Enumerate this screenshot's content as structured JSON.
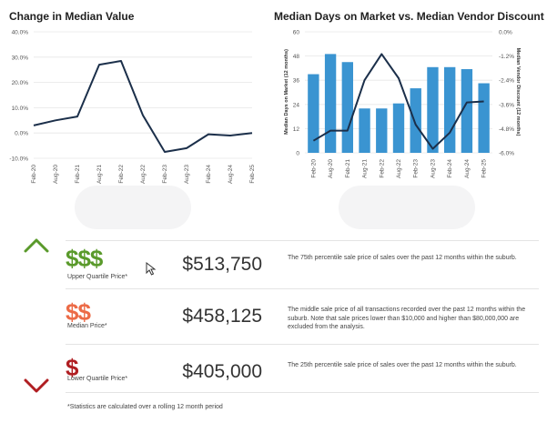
{
  "colors": {
    "line": "#1b2f4a",
    "bar": "#3a94d1",
    "upper": "#5a9a2b",
    "median": "#ec6b47",
    "lower": "#b01e22",
    "grid": "#e6e6e6",
    "axis_text": "#555555"
  },
  "charts": {
    "left_title": "Change in Median Value",
    "right_title": "Median Days on Market vs. Median Vendor Discount"
  },
  "chart_data": [
    {
      "type": "line",
      "title": "Change in Median Value",
      "categories": [
        "Feb-20",
        "Aug-20",
        "Feb-21",
        "Aug-21",
        "Feb-22",
        "Aug-22",
        "Feb-23",
        "Aug-23",
        "Feb-24",
        "Aug-24",
        "Feb-25"
      ],
      "values": [
        3.0,
        5.0,
        6.5,
        27.0,
        28.5,
        7.0,
        -7.5,
        -6.0,
        -0.5,
        -1.0,
        0.0
      ],
      "y_ticks": [
        "40.0%",
        "30.0%",
        "20.0%",
        "10.0%",
        "0.0%",
        "-10.0%"
      ],
      "ylim": [
        -10,
        40
      ],
      "grid": true
    },
    {
      "type": "bar+line",
      "title": "Median Days on Market vs. Median Vendor Discount",
      "categories": [
        "Feb-20",
        "Aug-20",
        "Feb-21",
        "Aug-21",
        "Feb-22",
        "Aug-22",
        "Feb-23",
        "Aug-23",
        "Feb-24",
        "Aug-24",
        "Feb-25"
      ],
      "bars": {
        "values": [
          39,
          49,
          45,
          22,
          22,
          24.5,
          32,
          42.5,
          42.5,
          41.5,
          34.5
        ],
        "ylabel": "Median Days on Market (12 months)",
        "ylim": [
          0,
          60
        ],
        "y_ticks": [
          "60",
          "48",
          "36",
          "24",
          "12",
          "0"
        ]
      },
      "line": {
        "values": [
          -5.4,
          -4.9,
          -4.9,
          -2.4,
          -1.1,
          -2.3,
          -4.6,
          -5.8,
          -5.0,
          -3.5,
          -3.45
        ],
        "ylabel": "Median Vendor Discount (12 months)",
        "ylim": [
          -6,
          0
        ],
        "y_ticks": [
          "0.0%",
          "-1.2%",
          "-2.4%",
          "-3.6%",
          "-4.8%",
          "-6.0%"
        ]
      },
      "grid": true
    }
  ],
  "prices": [
    {
      "dollars": "$$$",
      "label": "Upper Quartile Price*",
      "value": "$513,750",
      "description": "The 75th percentile sale price of sales over the past 12 months within the suburb."
    },
    {
      "dollars": "$$",
      "label": "Median Price*",
      "value": "$458,125",
      "description": "The middle sale price of all transactions recorded over the past 12 months within the suburb. Note that sale prices lower than $10,000 and higher than $80,000,000 are excluded from the analysis."
    },
    {
      "dollars": "$",
      "label": "Lower Quartile Price*",
      "value": "$405,000",
      "description": "The 25th percentile sale price of sales over the past 12 months within the suburb."
    }
  ],
  "footnote": "*Statistics are calculated over a rolling 12 month period"
}
